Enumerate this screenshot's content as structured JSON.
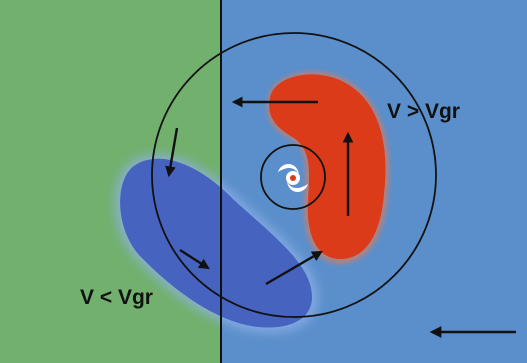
{
  "labels": {
    "right_top": "V > Vgr",
    "left_bottom": "V < Vgr"
  },
  "regions": {
    "left_background": {
      "color": "#72b06e"
    },
    "right_background": {
      "color": "#5b8fcb"
    },
    "warm_blob": {
      "color": "#dc3b1a"
    },
    "cool_blob": {
      "color": "#4563bf"
    }
  },
  "icons": {
    "center": "hurricane-icon"
  },
  "colors": {
    "line": "#111111",
    "hurricane_symbol": "#ffffff"
  }
}
